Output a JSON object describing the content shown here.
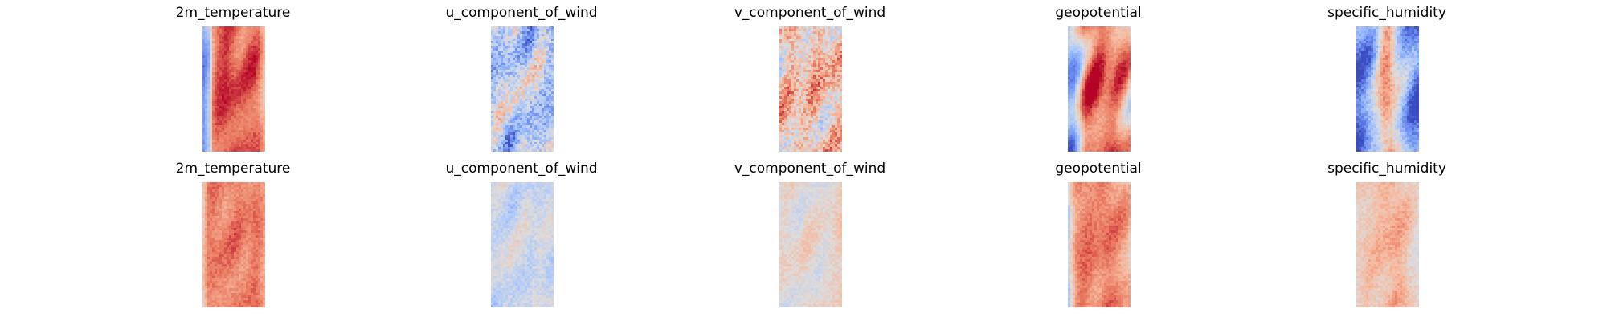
{
  "figure": {
    "colormap": "coolwarm",
    "colormap_stops": [
      "#3b4cc0",
      "#6f92f3",
      "#aac7fd",
      "#dddcdc",
      "#f7b89c",
      "#e7745b",
      "#b40426"
    ]
  },
  "chart_data": [
    {
      "type": "heatmap",
      "row": 1,
      "col": 1,
      "title": "2m_temperature",
      "description_values": {
        "x_profile": [
          0.18,
          0.3,
          0.82,
          0.88,
          0.92,
          0.9,
          0.86,
          0.84,
          0.86,
          0.88,
          0.82,
          0.62
        ],
        "texture": 0.08,
        "wave": 0.06,
        "seed": 11
      }
    },
    {
      "type": "heatmap",
      "row": 1,
      "col": 2,
      "title": "u_component_of_wind",
      "description_values": {
        "x_profile": [
          0.36,
          0.42,
          0.4,
          0.36,
          0.4,
          0.44,
          0.4,
          0.36,
          0.42,
          0.4,
          0.36,
          0.34
        ],
        "texture": 0.3,
        "wave": 0.12,
        "seed": 23
      }
    },
    {
      "type": "heatmap",
      "row": 1,
      "col": 3,
      "title": "v_component_of_wind",
      "description_values": {
        "x_profile": [
          0.58,
          0.62,
          0.66,
          0.64,
          0.6,
          0.62,
          0.66,
          0.64,
          0.6,
          0.62,
          0.64,
          0.6
        ],
        "texture": 0.3,
        "wave": 0.1,
        "seed": 37
      }
    },
    {
      "type": "heatmap",
      "row": 1,
      "col": 4,
      "title": "geopotential",
      "description_values": {
        "x_profile": [
          0.22,
          0.28,
          0.5,
          0.8,
          0.86,
          0.88,
          0.86,
          0.84,
          0.82,
          0.78,
          0.72,
          0.64
        ],
        "texture": 0.08,
        "wave": 0.14,
        "seed": 41
      }
    },
    {
      "type": "heatmap",
      "row": 1,
      "col": 5,
      "title": "specific_humidity",
      "description_values": {
        "x_profile": [
          0.06,
          0.14,
          0.22,
          0.34,
          0.52,
          0.74,
          0.7,
          0.52,
          0.34,
          0.22,
          0.14,
          0.1
        ],
        "texture": 0.16,
        "wave": 0.1,
        "seed": 53
      }
    },
    {
      "type": "heatmap",
      "row": 2,
      "col": 1,
      "title": "2m_temperature",
      "description_values": {
        "x_profile": [
          0.56,
          0.8,
          0.82,
          0.8,
          0.78,
          0.8,
          0.82,
          0.8,
          0.78,
          0.82,
          0.8,
          0.7
        ],
        "texture": 0.1,
        "wave": 0.04,
        "seed": 61
      }
    },
    {
      "type": "heatmap",
      "row": 2,
      "col": 2,
      "title": "u_component_of_wind",
      "description_values": {
        "x_profile": [
          0.42,
          0.44,
          0.46,
          0.45,
          0.44,
          0.45,
          0.46,
          0.44,
          0.45,
          0.46,
          0.44,
          0.43
        ],
        "texture": 0.14,
        "wave": 0.05,
        "seed": 73
      }
    },
    {
      "type": "heatmap",
      "row": 2,
      "col": 3,
      "title": "v_component_of_wind",
      "description_values": {
        "x_profile": [
          0.52,
          0.53,
          0.53,
          0.52,
          0.53,
          0.54,
          0.53,
          0.52,
          0.52,
          0.53,
          0.56,
          0.58
        ],
        "texture": 0.12,
        "wave": 0.04,
        "seed": 83
      }
    },
    {
      "type": "heatmap",
      "row": 2,
      "col": 4,
      "title": "geopotential",
      "description_values": {
        "x_profile": [
          0.36,
          0.68,
          0.8,
          0.82,
          0.8,
          0.78,
          0.8,
          0.82,
          0.8,
          0.76,
          0.72,
          0.66
        ],
        "texture": 0.1,
        "wave": 0.05,
        "seed": 97
      }
    },
    {
      "type": "heatmap",
      "row": 2,
      "col": 5,
      "title": "specific_humidity",
      "description_values": {
        "x_profile": [
          0.58,
          0.6,
          0.62,
          0.62,
          0.64,
          0.66,
          0.68,
          0.7,
          0.66,
          0.62,
          0.56,
          0.52
        ],
        "texture": 0.12,
        "wave": 0.04,
        "seed": 109
      }
    }
  ]
}
